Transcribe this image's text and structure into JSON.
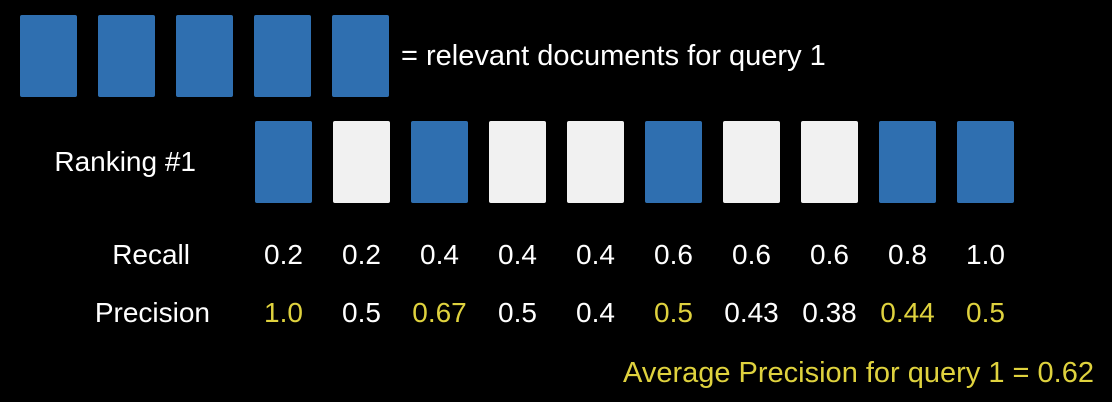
{
  "legend": {
    "text": "= relevant documents for query 1",
    "count": 5
  },
  "ranking": {
    "label": "Ranking #1",
    "documents": [
      "relevant",
      "irrelevant",
      "relevant",
      "irrelevant",
      "irrelevant",
      "relevant",
      "irrelevant",
      "irrelevant",
      "relevant",
      "relevant"
    ]
  },
  "recall": {
    "label": "Recall",
    "values": [
      "0.2",
      "0.2",
      "0.4",
      "0.4",
      "0.4",
      "0.6",
      "0.6",
      "0.6",
      "0.8",
      "1.0"
    ]
  },
  "precision": {
    "label": "Precision",
    "values": [
      "1.0",
      "0.5",
      "0.67",
      "0.5",
      "0.4",
      "0.5",
      "0.43",
      "0.38",
      "0.44",
      "0.5"
    ]
  },
  "average_precision": {
    "text": "Average Precision for query 1 = 0.62"
  },
  "colors": {
    "relevant": "#2f6fb0",
    "irrelevant": "#f1f1f1",
    "highlight": "#dfd23e",
    "background": "#000000"
  }
}
